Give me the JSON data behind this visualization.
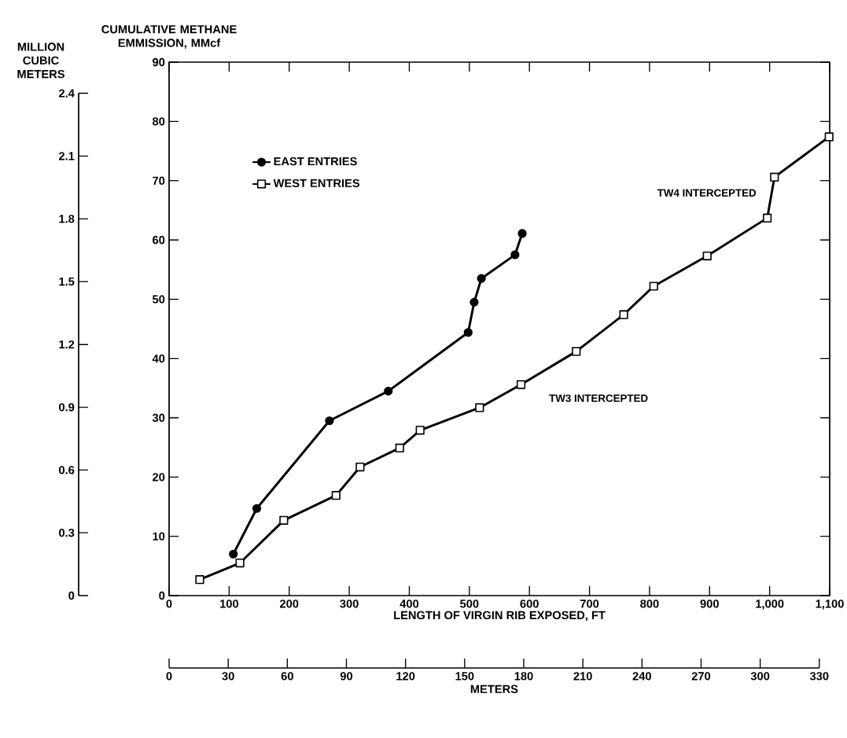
{
  "chart_data": {
    "type": "line",
    "xlabel": "LENGTH OF VIRGIN RIB EXPOSED, FT",
    "ylabel": "CUMULATIVE METHANE EMMISSION, MMcf",
    "y2label": "MILLION CUBIC METERS",
    "x2label": "METERS",
    "xlim": [
      0,
      1100
    ],
    "xticks": [
      0,
      100,
      200,
      300,
      400,
      500,
      600,
      700,
      800,
      900,
      {
        "value": 1000,
        "label": "1,000"
      },
      {
        "value": 1100,
        "label": "1,100"
      }
    ],
    "ylim": [
      0,
      90
    ],
    "yticks": [
      0,
      10,
      20,
      30,
      40,
      50,
      60,
      70,
      80,
      90
    ],
    "y2lim": [
      0,
      2.4
    ],
    "y2ticks": [
      0,
      0.3,
      0.6,
      0.9,
      1.2,
      1.5,
      1.8,
      2.1,
      2.4
    ],
    "x2lim": [
      0,
      330
    ],
    "x2ticks": [
      0,
      30,
      60,
      90,
      120,
      150,
      180,
      210,
      240,
      270,
      300,
      330
    ],
    "legend": "top left",
    "line_style": "solid",
    "series": [
      {
        "name": "EAST ENTRIES",
        "color": "#000000",
        "marker": "circle",
        "x": [
          107,
          146,
          267,
          365,
          498,
          508,
          520,
          576,
          588
        ],
        "values": [
          7.0,
          14.7,
          29.5,
          34.5,
          44.4,
          49.5,
          53.5,
          57.5,
          61.1
        ]
      },
      {
        "name": "WEST ENTRIES",
        "color": "#000000",
        "marker": "square",
        "x": [
          51,
          118,
          191,
          278,
          318,
          384,
          418,
          517,
          586,
          678,
          757,
          807,
          896,
          996,
          1008,
          1099
        ],
        "values": [
          2.7,
          5.5,
          12.7,
          16.9,
          21.7,
          24.9,
          27.9,
          31.7,
          35.6,
          41.2,
          47.4,
          52.2,
          57.3,
          63.7,
          70.6,
          77.4
        ]
      }
    ],
    "annotations": [
      "TW3 INTERCEPTED",
      "TW4 INTERCEPTED"
    ]
  }
}
